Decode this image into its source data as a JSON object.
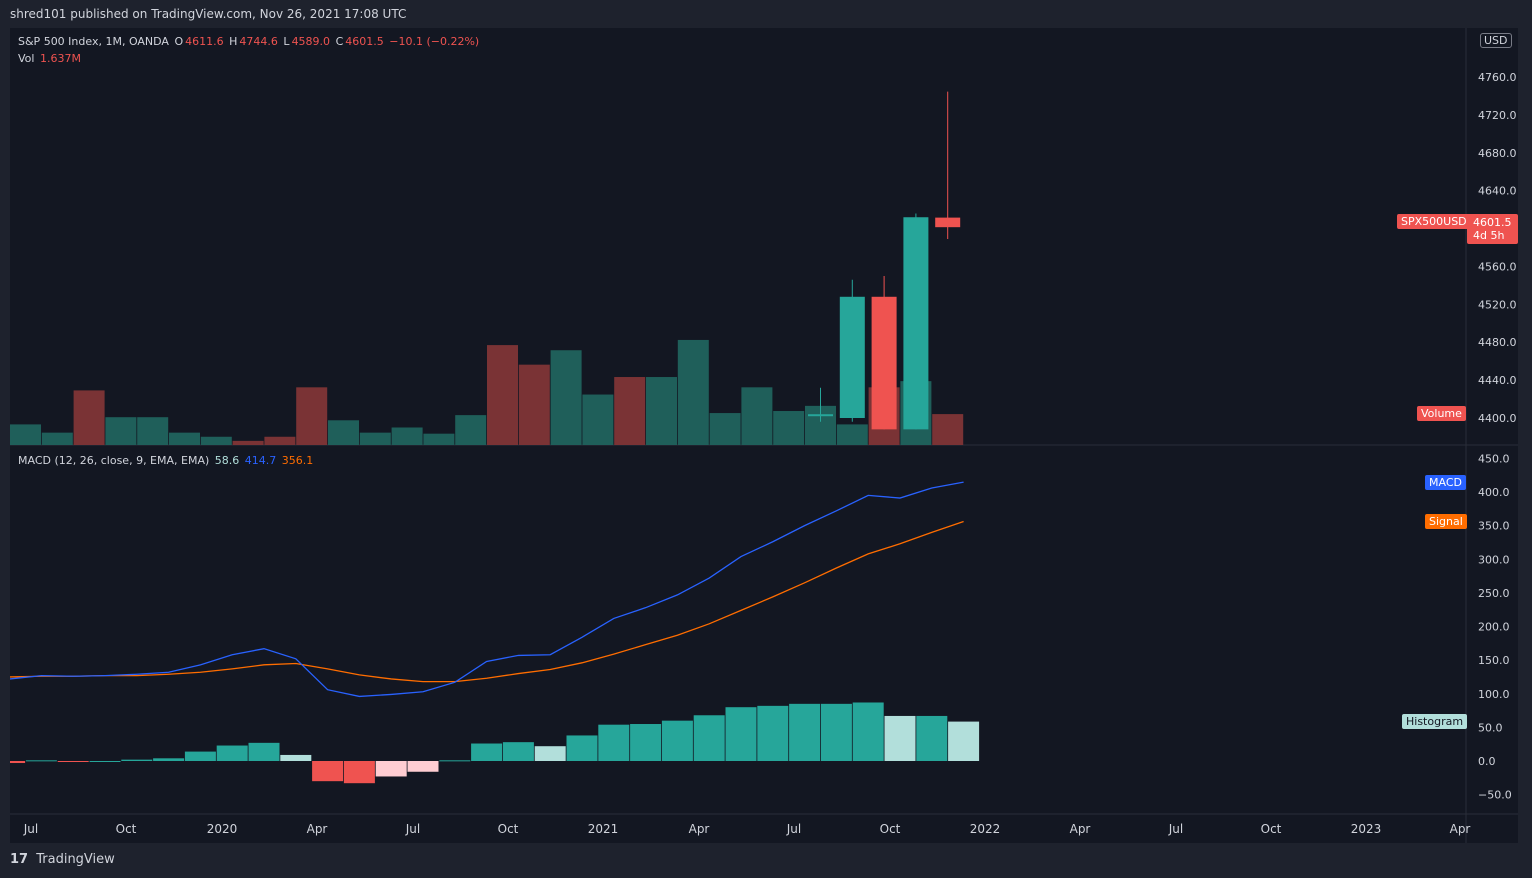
{
  "header": {
    "published_text": "shred101 published on TradingView.com, Nov 26, 2021 17:08 UTC"
  },
  "legend_main": {
    "symbol": "S&P 500 Index, 1M, OANDA",
    "o_label": "O",
    "o_value": "4611.6",
    "h_label": "H",
    "h_value": "4744.6",
    "l_label": "L",
    "l_value": "4589.0",
    "c_label": "C",
    "c_value": "4601.5",
    "change": "−10.1 (−0.22%)",
    "vol_label": "Vol",
    "vol_value": "1.637M"
  },
  "legend_macd": {
    "label": "MACD (12, 26, close, 9, EMA, EMA)",
    "hist_value": "58.6",
    "macd_value": "414.7",
    "signal_value": "356.1"
  },
  "tags": {
    "symbol": "SPX500USD",
    "price": "4601.5",
    "countdown": "4d 5h",
    "volume": "Volume",
    "macd": "MACD",
    "signal": "Signal",
    "histogram": "Histogram",
    "currency": "USD"
  },
  "footer": {
    "logo": "17",
    "brand": "TradingView"
  },
  "colors": {
    "up": "#26a69a",
    "down": "#ef5350",
    "vol_up": "#1f5f5a",
    "vol_down": "#7a3335",
    "macd": "#2962ff",
    "signal": "#ff6d00",
    "hist_up_grow": "#26a69a",
    "hist_up_fall": "#b2dfdb",
    "hist_down_grow": "#ef5350",
    "hist_down_fall": "#ffcdd2"
  },
  "chart_data": {
    "type": "candlestick",
    "price_axis": {
      "ticks": [
        "4400.0",
        "4440.0",
        "4480.0",
        "4520.0",
        "4560.0",
        "4640.0",
        "4680.0",
        "4720.0",
        "4760.0"
      ]
    },
    "macd_axis": {
      "ticks": [
        "450.0",
        "400.0",
        "350.0",
        "300.0",
        "250.0",
        "200.0",
        "150.0",
        "100.0",
        "50.0",
        "0.0",
        "−50.0"
      ]
    },
    "time_axis": {
      "ticks": [
        "Jul",
        "Oct",
        "2020",
        "Apr",
        "Jul",
        "Oct",
        "2021",
        "Apr",
        "Jul",
        "Oct",
        "2022",
        "Apr",
        "Jul",
        "Oct",
        "2023",
        "Apr"
      ]
    },
    "candles": [
      {
        "month": "2021-07",
        "open": 4404,
        "high": 4432,
        "low": 4396,
        "close": 4404
      },
      {
        "month": "2021-08",
        "open": 4400,
        "high": 4546,
        "low": 4396,
        "close": 4528
      },
      {
        "month": "2021-09",
        "open": 4528,
        "high": 4550,
        "low": 4388,
        "close": 4388
      },
      {
        "month": "2021-10",
        "open": 4388,
        "high": 4616,
        "low": 4388,
        "close": 4612
      },
      {
        "month": "2021-11",
        "open": 4611.6,
        "high": 4744.6,
        "low": 4589.0,
        "close": 4601.5
      }
    ],
    "volume_relative": [
      0.2,
      0.12,
      0.53,
      0.27,
      0.27,
      0.12,
      0.08,
      0.04,
      0.08,
      0.56,
      0.24,
      0.12,
      0.17,
      0.11,
      0.29,
      0.97,
      0.78,
      0.92,
      0.49,
      0.66,
      0.66,
      1.02,
      0.31,
      0.56,
      0.33,
      0.38,
      0.2,
      0.56,
      0.62,
      0.3
    ],
    "volume_up": [
      true,
      true,
      false,
      true,
      true,
      true,
      true,
      false,
      false,
      false,
      true,
      true,
      true,
      true,
      true,
      false,
      false,
      true,
      true,
      false,
      true,
      true,
      true,
      true,
      true,
      true,
      true,
      false,
      true,
      false
    ],
    "macd": [
      122,
      127,
      126,
      127,
      129,
      132,
      143,
      158,
      167,
      152,
      106,
      96,
      99,
      103,
      117,
      148,
      157,
      158,
      184,
      212,
      228,
      247,
      272,
      304,
      326,
      350,
      372,
      395,
      391,
      406,
      414.7
    ],
    "signal": [
      125,
      126,
      126,
      127,
      127,
      129,
      132,
      137,
      143,
      145,
      137,
      128,
      122,
      118,
      118,
      123,
      130,
      136,
      146,
      159,
      173,
      187,
      204,
      224,
      244,
      265,
      287,
      308,
      323,
      340,
      356.1
    ],
    "histogram": [
      -3,
      1,
      -1,
      0,
      2,
      4,
      14,
      23,
      27,
      9,
      -30,
      -33,
      -23,
      -16,
      1,
      26,
      28,
      22,
      38,
      54,
      55,
      60,
      68,
      80,
      82,
      85,
      85,
      87,
      67,
      67,
      58.6
    ]
  }
}
